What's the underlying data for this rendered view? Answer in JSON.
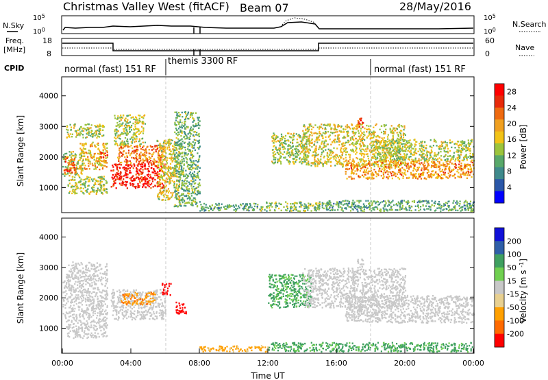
{
  "header": {
    "station": "Christmas Valley West (fitACF)",
    "beam": "Beam 07",
    "date": "28/May/2016"
  },
  "noise_panel": {
    "left_label": "N.Sky",
    "right_label": "N.Search",
    "yticks_left": [
      "10^5",
      "10^0"
    ],
    "yticks_right": [
      "10^5",
      "10^0"
    ]
  },
  "freq_panel": {
    "left_label_1": "Freq.",
    "left_label_2": "[MHz]",
    "right_label": "Nave",
    "yticks_left": [
      "18",
      "8"
    ],
    "yticks_right": [
      "60",
      "0"
    ]
  },
  "cpid": {
    "label": "CPID",
    "segments": [
      {
        "text": "normal (fast) 151 RF",
        "start_h": 0
      },
      {
        "text": "themis 3300 RF",
        "start_h": 6.0
      },
      {
        "text": "normal (fast) 151 RF",
        "start_h": 18.0
      }
    ]
  },
  "colors": {
    "power_scale": [
      "#0000ff",
      "#2b57a8",
      "#3f8a8c",
      "#58a86a",
      "#9cc43c",
      "#f2c317",
      "#f0a020",
      "#ef6a10",
      "#e82a0a",
      "#ff0000"
    ],
    "velocity_scale": [
      "#ff0000",
      "#ff6a00",
      "#ffa000",
      "#e8d090",
      "#c8c8c8",
      "#70d050",
      "#3fa060",
      "#2f5fa8",
      "#1010d8"
    ],
    "ground_scatter": "#c8c8c8"
  },
  "chart_data": [
    {
      "type": "heatmap",
      "title": "",
      "xlabel": "",
      "ylabel": "Slant Range [km]",
      "xlim": [
        0,
        24
      ],
      "ylim": [
        200,
        4600
      ],
      "yticks": [
        "1000",
        "2000",
        "3000",
        "4000"
      ],
      "colorbar": {
        "label": "Power [dB]",
        "ticks": [
          "4",
          "8",
          "12",
          "16",
          "20",
          "24",
          "28"
        ],
        "range": [
          0,
          30
        ]
      },
      "scatter_regions": [
        {
          "x": [
            0,
            1.2
          ],
          "y": [
            1400,
            2200
          ],
          "value": 14
        },
        {
          "x": [
            0.1,
            0.8
          ],
          "y": [
            1500,
            2000
          ],
          "value": 24
        },
        {
          "x": [
            1.0,
            2.6
          ],
          "y": [
            1600,
            2500
          ],
          "value": 18
        },
        {
          "x": [
            2.2,
            2.6
          ],
          "y": [
            2000,
            2200
          ],
          "value": 26
        },
        {
          "x": [
            0.2,
            2.4
          ],
          "y": [
            2650,
            3100
          ],
          "value": 14
        },
        {
          "x": [
            0.3,
            2.6
          ],
          "y": [
            800,
            1400
          ],
          "value": 14
        },
        {
          "x": [
            2.8,
            6.0
          ],
          "y": [
            1000,
            1800
          ],
          "value": 27
        },
        {
          "x": [
            3.2,
            6.0
          ],
          "y": [
            1800,
            2400
          ],
          "value": 22
        },
        {
          "x": [
            3.0,
            4.8
          ],
          "y": [
            2400,
            3400
          ],
          "value": 14
        },
        {
          "x": [
            5.5,
            6.8
          ],
          "y": [
            600,
            2600
          ],
          "value": 16
        },
        {
          "x": [
            6.5,
            8.0
          ],
          "y": [
            400,
            3500
          ],
          "value": 11
        },
        {
          "x": [
            8.0,
            11.5
          ],
          "y": [
            250,
            500
          ],
          "value": 10
        },
        {
          "x": [
            11.5,
            15.5
          ],
          "y": [
            250,
            550
          ],
          "value": 12
        },
        {
          "x": [
            12.2,
            14.4
          ],
          "y": [
            1800,
            2800
          ],
          "value": 14
        },
        {
          "x": [
            14.0,
            20.0
          ],
          "y": [
            1700,
            3100
          ],
          "value": 16
        },
        {
          "x": [
            16.5,
            24.0
          ],
          "y": [
            1300,
            1900
          ],
          "value": 20
        },
        {
          "x": [
            18.0,
            24.0
          ],
          "y": [
            1900,
            2600
          ],
          "value": 14
        },
        {
          "x": [
            17.2,
            17.6
          ],
          "y": [
            3000,
            3300
          ],
          "value": 24
        },
        {
          "x": [
            15.5,
            24.0
          ],
          "y": [
            250,
            600
          ],
          "value": 10
        }
      ]
    },
    {
      "type": "heatmap",
      "title": "",
      "xlabel": "Time UT",
      "ylabel": "Slant Range [km]",
      "xlim": [
        0,
        24
      ],
      "ylim": [
        200,
        4600
      ],
      "xticks": [
        "00:00",
        "04:00",
        "08:00",
        "12:00",
        "16:00",
        "20:00",
        "00:00"
      ],
      "yticks": [
        "1000",
        "2000",
        "3000",
        "4000"
      ],
      "colorbar": {
        "label": "Velocity [m s^-1]",
        "ticks": [
          "200",
          "100",
          "50",
          "15",
          "-15",
          "-50",
          "-100",
          "-200"
        ],
        "range": [
          -250,
          250
        ]
      },
      "scatter_regions": [
        {
          "x": [
            0,
            2.6
          ],
          "y": [
            1300,
            2600
          ],
          "value": 0
        },
        {
          "x": [
            0.2,
            2.6
          ],
          "y": [
            2600,
            3200
          ],
          "value": 0
        },
        {
          "x": [
            0.2,
            2.6
          ],
          "y": [
            700,
            1300
          ],
          "value": 0
        },
        {
          "x": [
            2.8,
            6.0
          ],
          "y": [
            1300,
            2300
          ],
          "value": 0
        },
        {
          "x": [
            3.4,
            5.4
          ],
          "y": [
            1800,
            2200
          ],
          "value": -70
        },
        {
          "x": [
            5.8,
            6.3
          ],
          "y": [
            2100,
            2500
          ],
          "value": -220
        },
        {
          "x": [
            6.6,
            7.2
          ],
          "y": [
            1500,
            1900
          ],
          "value": -220
        },
        {
          "x": [
            12.0,
            14.5
          ],
          "y": [
            1700,
            2800
          ],
          "value": 40
        },
        {
          "x": [
            14.0,
            20.0
          ],
          "y": [
            1700,
            3000
          ],
          "value": 0
        },
        {
          "x": [
            16.5,
            24.0
          ],
          "y": [
            1200,
            2100
          ],
          "value": 0
        },
        {
          "x": [
            17.2,
            17.6
          ],
          "y": [
            3000,
            3300
          ],
          "value": 0
        },
        {
          "x": [
            8.0,
            12.0
          ],
          "y": [
            250,
            450
          ],
          "value": -40
        },
        {
          "x": [
            12.0,
            24.0
          ],
          "y": [
            250,
            550
          ],
          "value": 40
        }
      ]
    }
  ]
}
